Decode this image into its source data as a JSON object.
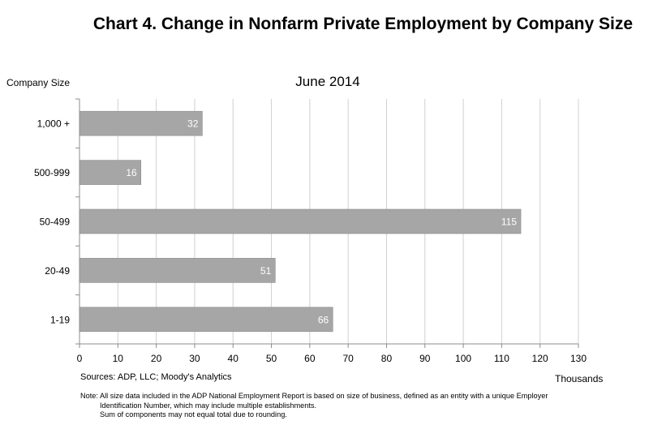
{
  "title": "Chart 4. Change in Nonfarm Private Employment by Company Size",
  "chart_data": {
    "type": "bar",
    "orientation": "horizontal",
    "subtitle": "June 2014",
    "ylabel": "Company Size",
    "xlabel": "Thousands",
    "categories": [
      "1,000 +",
      "500-999",
      "50-499",
      "20-49",
      "1-19"
    ],
    "values": [
      32,
      16,
      115,
      51,
      66
    ],
    "data_labels": [
      "32",
      "16",
      "115",
      "51",
      "66"
    ],
    "xlim": [
      0,
      130
    ],
    "xticks": [
      0,
      10,
      20,
      30,
      40,
      50,
      60,
      70,
      80,
      90,
      100,
      110,
      120,
      130
    ],
    "grid": "vertical",
    "bar_color": "#a6a6a6",
    "grid_color": "#d0d0d0"
  },
  "source": "Sources: ADP, LLC; Moody's Analytics",
  "note": {
    "line1": "Note:  All size data included in the ADP National Employment Report is based on size of business, defined as an entity with a unique Employer",
    "line2": "Identification Number, which may include multiple establishments.",
    "line3": "Sum of components may not equal total due to rounding."
  }
}
